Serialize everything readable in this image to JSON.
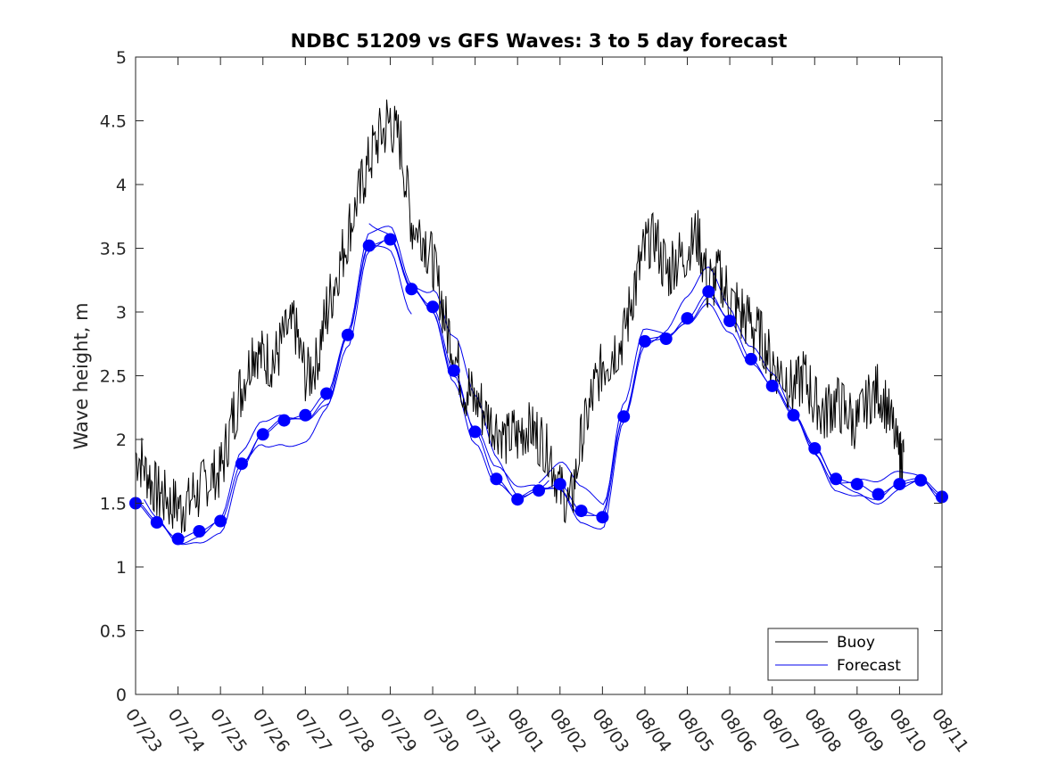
{
  "chart_data": {
    "type": "line",
    "title": "NDBC 51209 vs GFS Waves: 3 to 5 day forecast",
    "xlabel": "",
    "ylabel": "Wave height, m",
    "x_ticks": [
      "07/23",
      "07/24",
      "07/25",
      "07/26",
      "07/27",
      "07/28",
      "07/29",
      "07/30",
      "07/31",
      "08/01",
      "08/02",
      "08/03",
      "08/04",
      "08/05",
      "08/06",
      "08/07",
      "08/08",
      "08/09",
      "08/10",
      "08/11"
    ],
    "xlim": [
      "07/23",
      "08/11"
    ],
    "ylim": [
      0,
      5
    ],
    "y_ticks": [
      "0",
      "0.5",
      "1",
      "1.5",
      "2",
      "2.5",
      "3",
      "3.5",
      "4",
      "4.5",
      "5"
    ],
    "grid": false,
    "legend_position": "bottom-right",
    "colors": {
      "buoy": "#000000",
      "forecast": "#0000ee",
      "points": "#0000ff"
    },
    "series": [
      {
        "name": "Buoy",
        "style": "line",
        "x": [
          0,
          0.25,
          0.5,
          0.75,
          1,
          1.25,
          1.5,
          1.75,
          2,
          2.25,
          2.5,
          2.75,
          3,
          3.25,
          3.5,
          3.75,
          4,
          4.25,
          4.5,
          4.75,
          5,
          5.25,
          5.5,
          5.75,
          6,
          6.25,
          6.5,
          6.75,
          7,
          7.25,
          7.5,
          7.75,
          8,
          8.25,
          8.5,
          8.75,
          9,
          9.25,
          9.5,
          9.75,
          10,
          10.25,
          10.5,
          10.75,
          11,
          11.25,
          11.5,
          11.75,
          12,
          12.25,
          12.5,
          12.75,
          13,
          13.25,
          13.5,
          13.75,
          14,
          14.25,
          14.5,
          14.75,
          15,
          15.25,
          15.5,
          15.75,
          16,
          16.25,
          16.5,
          16.75,
          17,
          17.25,
          17.5,
          17.75,
          18,
          18.1
        ],
        "y": [
          1.9,
          1.75,
          1.6,
          1.55,
          1.45,
          1.5,
          1.6,
          1.7,
          1.75,
          2.1,
          2.4,
          2.7,
          2.65,
          2.6,
          2.8,
          2.9,
          2.5,
          2.6,
          3.0,
          3.3,
          3.6,
          3.9,
          4.2,
          4.4,
          4.5,
          4.3,
          3.7,
          3.6,
          3.4,
          3.0,
          2.7,
          2.4,
          2.3,
          2.2,
          2.1,
          2.0,
          2.05,
          2.1,
          2.0,
          1.9,
          1.6,
          1.5,
          2.0,
          2.3,
          2.6,
          2.7,
          2.8,
          3.2,
          3.5,
          3.6,
          3.3,
          3.4,
          3.5,
          3.6,
          3.2,
          3.3,
          3.1,
          3.0,
          2.9,
          2.8,
          2.6,
          2.5,
          2.4,
          2.5,
          2.3,
          2.2,
          2.3,
          2.2,
          2.1,
          2.3,
          2.4,
          2.2,
          1.85,
          1.9
        ]
      },
      {
        "name": "Forecast",
        "style": "line",
        "x": [
          0,
          0.5,
          1,
          1.5,
          2,
          2.5,
          3,
          3.5,
          4,
          4.5,
          5,
          5.5,
          6,
          6.5,
          7,
          7.5,
          8,
          8.5,
          9,
          9.5,
          10,
          10.5,
          11,
          11.5,
          12,
          12.5,
          13,
          13.5,
          14,
          14.5,
          15,
          15.5,
          16,
          16.5,
          17,
          17.5,
          18,
          18.5,
          19
        ],
        "y": [
          1.5,
          1.35,
          1.22,
          1.28,
          1.36,
          1.81,
          2.04,
          2.15,
          2.19,
          2.36,
          2.82,
          3.52,
          3.57,
          3.18,
          3.04,
          2.54,
          2.06,
          1.69,
          1.53,
          1.6,
          1.65,
          1.44,
          1.39,
          2.18,
          2.77,
          2.79,
          2.95,
          3.16,
          2.93,
          2.63,
          2.42,
          2.19,
          1.93,
          1.69,
          1.65,
          1.57,
          1.65,
          1.68,
          1.55
        ]
      }
    ]
  }
}
